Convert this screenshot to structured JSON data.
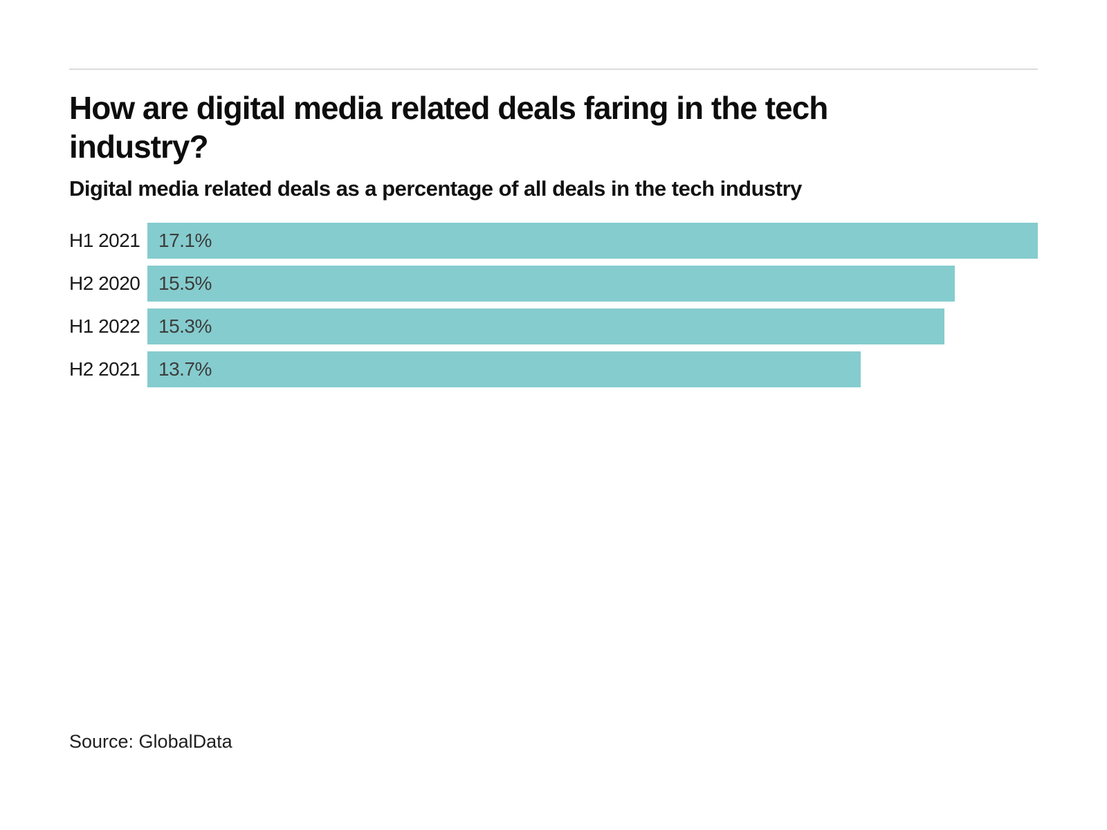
{
  "header": {
    "title": "How are digital media related deals faring in the tech\nindustry?",
    "subtitle": "Digital media related deals as a percentage of all deals in the tech industry"
  },
  "source": {
    "label": "Source: GlobalData"
  },
  "colors": {
    "bar": "#85ccce",
    "rule": "#dbdbdb",
    "value_label": "#3d3d3d",
    "category_label": "#1a1a1a",
    "title": "#0d0d0d"
  },
  "chart_data": {
    "type": "bar",
    "orientation": "horizontal",
    "title": "How are digital media related deals faring in the tech industry?",
    "subtitle": "Digital media related deals as a percentage of all deals in the tech industry",
    "categories": [
      "H1 2021",
      "H2 2020",
      "H1 2022",
      "H2 2021"
    ],
    "values": [
      17.1,
      15.5,
      15.3,
      13.7
    ],
    "value_labels": [
      "17.1%",
      "15.5%",
      "15.3%",
      "13.7%"
    ],
    "xlabel": "",
    "ylabel": "",
    "xlim": [
      0,
      17.1
    ],
    "grid": false,
    "legend": false,
    "bar_color": "#85ccce"
  }
}
